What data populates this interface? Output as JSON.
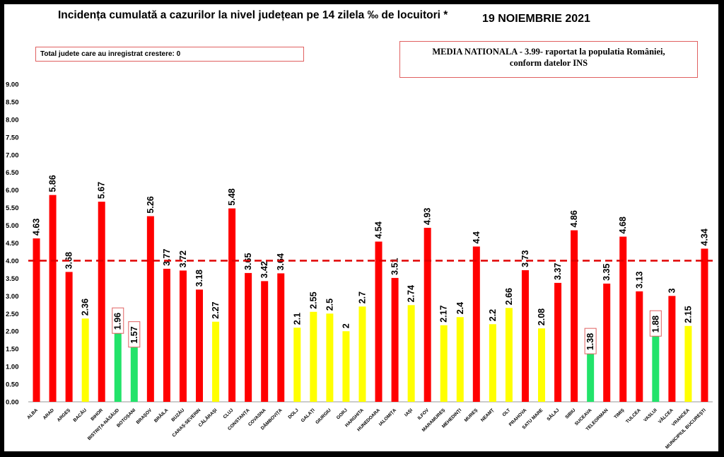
{
  "title": "Incidența cumulată a cazurilor la nivel județean pe 14 zilela ‰ de locuitori *",
  "date": "19 NOIEMBRIE 2021",
  "info_left": "Total judete care au inregistrat crestere: 0",
  "info_right_line1": "MEDIA NATIONALA  - 3.99-  raportat la populatia României,",
  "info_right_line2": "conform datelor INS",
  "colors": {
    "red": "#ff0000",
    "yellow": "#ffff00",
    "green": "#22e36a",
    "threshold": "#e00000"
  },
  "chart_data": {
    "type": "bar",
    "ylim": [
      0,
      9
    ],
    "threshold": 4.0,
    "y_ticks": [
      "0.00",
      "0.50",
      "1.00",
      "1.50",
      "2.00",
      "2.50",
      "3.00",
      "3.50",
      "4.00",
      "4.50",
      "5.00",
      "5.50",
      "6.00",
      "6.50",
      "7.00",
      "7.50",
      "8.00",
      "8.50",
      "9.00"
    ],
    "categories": [
      "ALBA",
      "ARAD",
      "ARGEȘ",
      "BACĂU",
      "BIHOR",
      "BISTRIȚA-NĂSĂUD",
      "BOTOȘANI",
      "BRAȘOV",
      "BRĂILA",
      "BUZĂU",
      "CARAȘ-SEVERIN",
      "CĂLĂRAȘI",
      "CLUJ",
      "CONSTANȚA",
      "COVASNA",
      "DÂMBOVIȚA",
      "DOLJ",
      "GALAȚI",
      "GIURGIU",
      "GORJ",
      "HARGHITA",
      "HUNEDOARA",
      "IALOMIȚA",
      "IAȘI",
      "ILFOV",
      "MARAMUREȘ",
      "MEHEDINȚI",
      "MUREȘ",
      "NEAMȚ",
      "OLT",
      "PRAHOVA",
      "SATU MARE",
      "SĂLAJ",
      "SIBIU",
      "SUCEAVA",
      "TELEORMAN",
      "TIMIȘ",
      "TULCEA",
      "VASLUI",
      "VÂLCEA",
      "VRANCEA",
      "MUNICIPIUL BUCUREȘTI"
    ],
    "values": [
      4.63,
      5.86,
      3.68,
      2.36,
      5.67,
      1.96,
      1.57,
      5.26,
      3.77,
      3.72,
      3.18,
      2.27,
      5.48,
      3.65,
      3.42,
      3.64,
      2.1,
      2.55,
      2.5,
      2,
      2.7,
      4.54,
      3.51,
      2.74,
      4.93,
      2.17,
      2.4,
      4.4,
      2.2,
      2.66,
      3.73,
      2.08,
      3.37,
      4.86,
      1.38,
      3.35,
      4.68,
      3.13,
      1.88,
      3,
      2.15,
      4.34
    ],
    "labels": [
      "4.63",
      "5.86",
      "3.68",
      "2.36",
      "5.67",
      "1.96",
      "1.57",
      "5.26",
      "3.77",
      "3.72",
      "3.18",
      "2.27",
      "5.48",
      "3.65",
      "3.42",
      "3.64",
      "2.1",
      "2.55",
      "2.5",
      "2",
      "2.7",
      "4.54",
      "3.51",
      "2.74",
      "4.93",
      "2.17",
      "2.4",
      "4.4",
      "2.2",
      "2.66",
      "3.73",
      "2.08",
      "3.37",
      "4.86",
      "1.38",
      "3.35",
      "4.68",
      "3.13",
      "1.88",
      "3",
      "2.15",
      "4.34"
    ],
    "bar_colors": [
      "red",
      "red",
      "red",
      "yellow",
      "red",
      "green",
      "green",
      "red",
      "red",
      "red",
      "red",
      "yellow",
      "red",
      "red",
      "red",
      "red",
      "yellow",
      "yellow",
      "yellow",
      "yellow",
      "yellow",
      "red",
      "red",
      "yellow",
      "red",
      "yellow",
      "yellow",
      "red",
      "yellow",
      "yellow",
      "red",
      "yellow",
      "red",
      "red",
      "green",
      "red",
      "red",
      "red",
      "green",
      "red",
      "yellow",
      "red"
    ],
    "boxed_labels": [
      "1.96",
      "1.57",
      "1.38",
      "1.88"
    ]
  }
}
